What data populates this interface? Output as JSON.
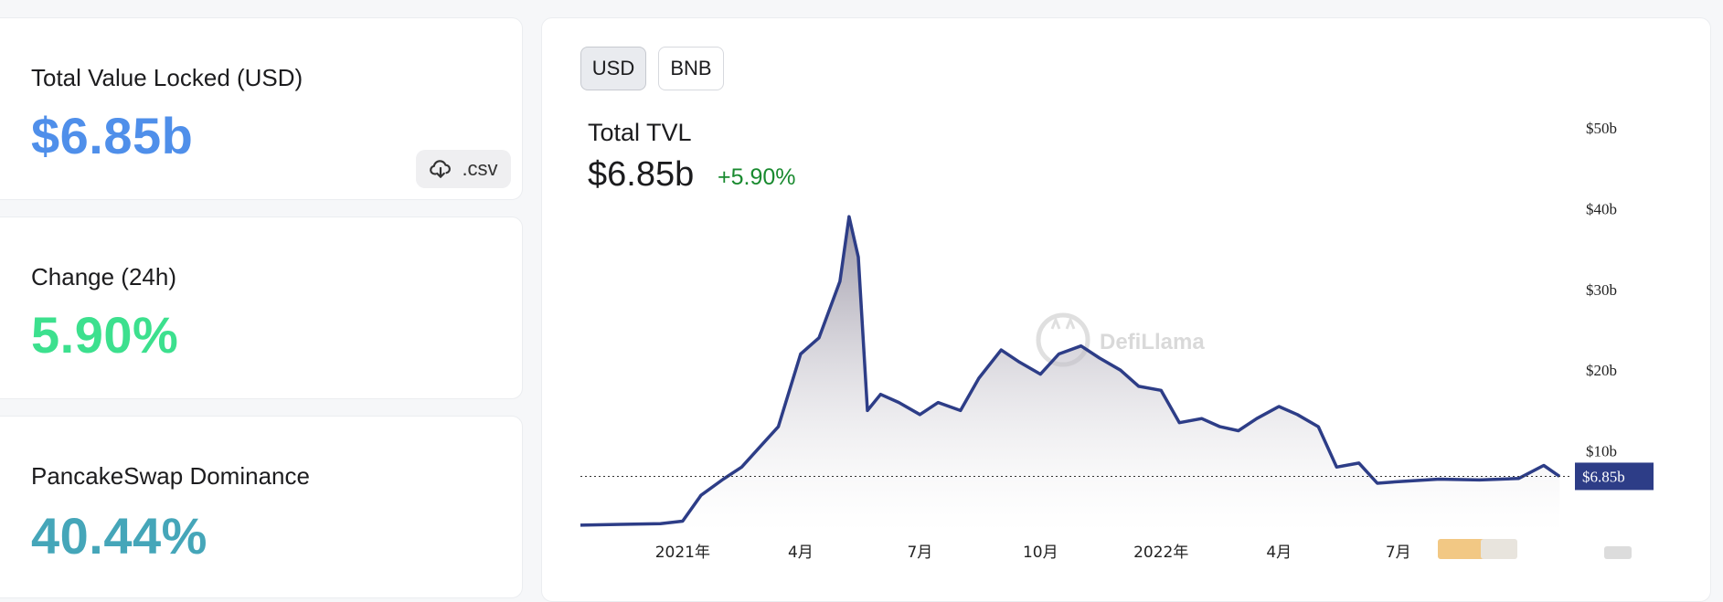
{
  "stats": {
    "tvl": {
      "label": "Total Value Locked (USD)",
      "value": "$6.85b",
      "csv_label": ".csv"
    },
    "change": {
      "label": "Change (24h)",
      "value": "5.90%"
    },
    "dominance": {
      "label": "PancakeSwap Dominance",
      "value": "40.44%"
    }
  },
  "chart_panel": {
    "denominations": [
      "USD",
      "BNB"
    ],
    "selected_denomination": "USD",
    "title": "Total TVL",
    "current_value": "$6.85b",
    "change_text": "+5.90%",
    "watermark": "DefiLlama",
    "current_value_tag": "$6.85b"
  },
  "colors": {
    "tvl_value": "#4f8fea",
    "change_value": "#3ce08e",
    "dominance_value": "#45a6b9",
    "line": "#2d3d87",
    "positive_change": "#198a2f"
  },
  "chart_data": {
    "type": "area",
    "title": "Total TVL",
    "x_ticks": [
      "2021年",
      "4月",
      "7月",
      "10月",
      "2022年",
      "4月",
      "7月"
    ],
    "y_ticks": [
      "$10b",
      "$20b",
      "$30b",
      "$40b",
      "$50b"
    ],
    "ylim": [
      0,
      50
    ],
    "y_unit": "billion USD",
    "current_value": 6.85,
    "series": [
      {
        "x": [
          "2020-10-15",
          "2020-11-15",
          "2020-12-15",
          "2021-01-01",
          "2021-01-15",
          "2021-02-01",
          "2021-02-15",
          "2021-03-01",
          "2021-03-15",
          "2021-04-01",
          "2021-04-15",
          "2021-05-01",
          "2021-05-08",
          "2021-05-15",
          "2021-05-22",
          "2021-06-01",
          "2021-06-15",
          "2021-07-01",
          "2021-07-15",
          "2021-08-01",
          "2021-08-15",
          "2021-09-01",
          "2021-09-15",
          "2021-10-01",
          "2021-10-15",
          "2021-11-01",
          "2021-11-15",
          "2021-12-01",
          "2021-12-15",
          "2022-01-01",
          "2022-01-15",
          "2022-02-01",
          "2022-02-15",
          "2022-03-01",
          "2022-03-15",
          "2022-04-01",
          "2022-04-15",
          "2022-05-01",
          "2022-05-15",
          "2022-06-01",
          "2022-06-15",
          "2022-07-01",
          "2022-08-01",
          "2022-09-01",
          "2022-10-01",
          "2022-10-20",
          "2022-11-01"
        ],
        "values": [
          0.8,
          0.9,
          1.0,
          1.3,
          4.5,
          6.5,
          8.0,
          10.5,
          13.0,
          22.0,
          24.0,
          31.0,
          39.0,
          34.0,
          15.0,
          17.0,
          16.0,
          14.5,
          16.0,
          15.0,
          19.0,
          22.5,
          21.0,
          19.5,
          22.0,
          23.0,
          21.5,
          20.0,
          18.0,
          17.5,
          13.5,
          14.0,
          13.0,
          12.5,
          14.0,
          15.5,
          14.5,
          13.0,
          8.0,
          8.5,
          6.0,
          6.2,
          6.5,
          6.4,
          6.6,
          8.2,
          6.85
        ]
      }
    ],
    "grid": false,
    "legend": "none"
  }
}
